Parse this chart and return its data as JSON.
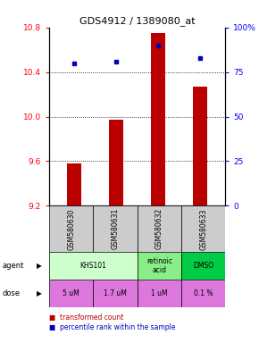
{
  "title": "GDS4912 / 1389080_at",
  "samples": [
    "GSM580630",
    "GSM580631",
    "GSM580632",
    "GSM580633"
  ],
  "bar_values": [
    9.58,
    9.97,
    10.75,
    10.27
  ],
  "bar_bottom": 9.2,
  "scatter_values": [
    80,
    81,
    90,
    83
  ],
  "ylim_left": [
    9.2,
    10.8
  ],
  "ylim_right": [
    0,
    100
  ],
  "yticks_left": [
    9.2,
    9.6,
    10.0,
    10.4,
    10.8
  ],
  "yticks_right": [
    0,
    25,
    50,
    75,
    100
  ],
  "ytick_labels_right": [
    "0",
    "25",
    "50",
    "75",
    "100%"
  ],
  "bar_color": "#bb0000",
  "scatter_color": "#0000bb",
  "agent_row": [
    {
      "label": "KHS101",
      "colspan": 2,
      "color": "#ccffcc"
    },
    {
      "label": "retinoic\nacid",
      "colspan": 1,
      "color": "#88ee88"
    },
    {
      "label": "DMSO",
      "colspan": 1,
      "color": "#00cc44"
    }
  ],
  "dose_row": [
    {
      "label": "5 uM",
      "color": "#dd77dd"
    },
    {
      "label": "1.7 uM",
      "color": "#dd77dd"
    },
    {
      "label": "1 uM",
      "color": "#dd77dd"
    },
    {
      "label": "0.1 %",
      "color": "#dd77dd"
    }
  ],
  "sample_bg": "#cccccc",
  "legend_items": [
    {
      "color": "#bb0000",
      "label": "transformed count"
    },
    {
      "color": "#0000bb",
      "label": "percentile rank within the sample"
    }
  ]
}
